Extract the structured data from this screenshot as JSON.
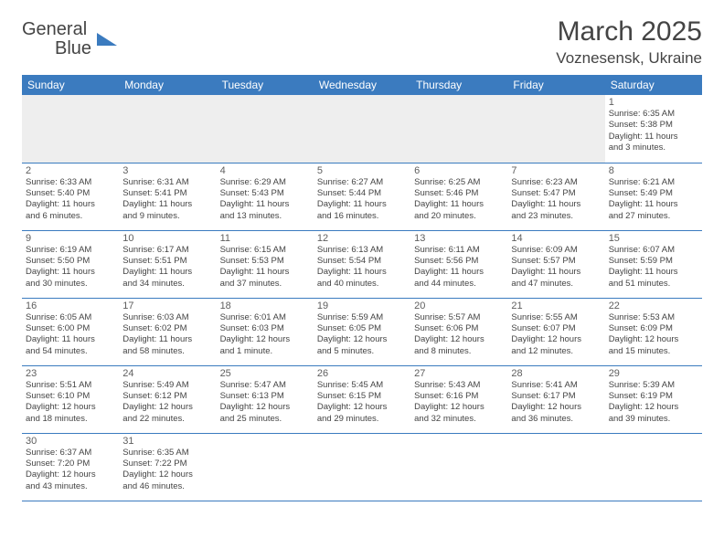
{
  "logo": {
    "text1": "General",
    "text2": "Blue"
  },
  "title": "March 2025",
  "location": "Voznesensk, Ukraine",
  "weekdays": [
    "Sunday",
    "Monday",
    "Tuesday",
    "Wednesday",
    "Thursday",
    "Friday",
    "Saturday"
  ],
  "colors": {
    "header_bg": "#3b7bbf",
    "header_text": "#ffffff",
    "day_border": "#3b7bbf",
    "text": "#444444",
    "leading_bg": "#eeeeee"
  },
  "rows": [
    [
      null,
      null,
      null,
      null,
      null,
      null,
      {
        "d": "1",
        "sr": "Sunrise: 6:35 AM",
        "ss": "Sunset: 5:38 PM",
        "dl1": "Daylight: 11 hours",
        "dl2": "and 3 minutes."
      }
    ],
    [
      {
        "d": "2",
        "sr": "Sunrise: 6:33 AM",
        "ss": "Sunset: 5:40 PM",
        "dl1": "Daylight: 11 hours",
        "dl2": "and 6 minutes."
      },
      {
        "d": "3",
        "sr": "Sunrise: 6:31 AM",
        "ss": "Sunset: 5:41 PM",
        "dl1": "Daylight: 11 hours",
        "dl2": "and 9 minutes."
      },
      {
        "d": "4",
        "sr": "Sunrise: 6:29 AM",
        "ss": "Sunset: 5:43 PM",
        "dl1": "Daylight: 11 hours",
        "dl2": "and 13 minutes."
      },
      {
        "d": "5",
        "sr": "Sunrise: 6:27 AM",
        "ss": "Sunset: 5:44 PM",
        "dl1": "Daylight: 11 hours",
        "dl2": "and 16 minutes."
      },
      {
        "d": "6",
        "sr": "Sunrise: 6:25 AM",
        "ss": "Sunset: 5:46 PM",
        "dl1": "Daylight: 11 hours",
        "dl2": "and 20 minutes."
      },
      {
        "d": "7",
        "sr": "Sunrise: 6:23 AM",
        "ss": "Sunset: 5:47 PM",
        "dl1": "Daylight: 11 hours",
        "dl2": "and 23 minutes."
      },
      {
        "d": "8",
        "sr": "Sunrise: 6:21 AM",
        "ss": "Sunset: 5:49 PM",
        "dl1": "Daylight: 11 hours",
        "dl2": "and 27 minutes."
      }
    ],
    [
      {
        "d": "9",
        "sr": "Sunrise: 6:19 AM",
        "ss": "Sunset: 5:50 PM",
        "dl1": "Daylight: 11 hours",
        "dl2": "and 30 minutes."
      },
      {
        "d": "10",
        "sr": "Sunrise: 6:17 AM",
        "ss": "Sunset: 5:51 PM",
        "dl1": "Daylight: 11 hours",
        "dl2": "and 34 minutes."
      },
      {
        "d": "11",
        "sr": "Sunrise: 6:15 AM",
        "ss": "Sunset: 5:53 PM",
        "dl1": "Daylight: 11 hours",
        "dl2": "and 37 minutes."
      },
      {
        "d": "12",
        "sr": "Sunrise: 6:13 AM",
        "ss": "Sunset: 5:54 PM",
        "dl1": "Daylight: 11 hours",
        "dl2": "and 40 minutes."
      },
      {
        "d": "13",
        "sr": "Sunrise: 6:11 AM",
        "ss": "Sunset: 5:56 PM",
        "dl1": "Daylight: 11 hours",
        "dl2": "and 44 minutes."
      },
      {
        "d": "14",
        "sr": "Sunrise: 6:09 AM",
        "ss": "Sunset: 5:57 PM",
        "dl1": "Daylight: 11 hours",
        "dl2": "and 47 minutes."
      },
      {
        "d": "15",
        "sr": "Sunrise: 6:07 AM",
        "ss": "Sunset: 5:59 PM",
        "dl1": "Daylight: 11 hours",
        "dl2": "and 51 minutes."
      }
    ],
    [
      {
        "d": "16",
        "sr": "Sunrise: 6:05 AM",
        "ss": "Sunset: 6:00 PM",
        "dl1": "Daylight: 11 hours",
        "dl2": "and 54 minutes."
      },
      {
        "d": "17",
        "sr": "Sunrise: 6:03 AM",
        "ss": "Sunset: 6:02 PM",
        "dl1": "Daylight: 11 hours",
        "dl2": "and 58 minutes."
      },
      {
        "d": "18",
        "sr": "Sunrise: 6:01 AM",
        "ss": "Sunset: 6:03 PM",
        "dl1": "Daylight: 12 hours",
        "dl2": "and 1 minute."
      },
      {
        "d": "19",
        "sr": "Sunrise: 5:59 AM",
        "ss": "Sunset: 6:05 PM",
        "dl1": "Daylight: 12 hours",
        "dl2": "and 5 minutes."
      },
      {
        "d": "20",
        "sr": "Sunrise: 5:57 AM",
        "ss": "Sunset: 6:06 PM",
        "dl1": "Daylight: 12 hours",
        "dl2": "and 8 minutes."
      },
      {
        "d": "21",
        "sr": "Sunrise: 5:55 AM",
        "ss": "Sunset: 6:07 PM",
        "dl1": "Daylight: 12 hours",
        "dl2": "and 12 minutes."
      },
      {
        "d": "22",
        "sr": "Sunrise: 5:53 AM",
        "ss": "Sunset: 6:09 PM",
        "dl1": "Daylight: 12 hours",
        "dl2": "and 15 minutes."
      }
    ],
    [
      {
        "d": "23",
        "sr": "Sunrise: 5:51 AM",
        "ss": "Sunset: 6:10 PM",
        "dl1": "Daylight: 12 hours",
        "dl2": "and 18 minutes."
      },
      {
        "d": "24",
        "sr": "Sunrise: 5:49 AM",
        "ss": "Sunset: 6:12 PM",
        "dl1": "Daylight: 12 hours",
        "dl2": "and 22 minutes."
      },
      {
        "d": "25",
        "sr": "Sunrise: 5:47 AM",
        "ss": "Sunset: 6:13 PM",
        "dl1": "Daylight: 12 hours",
        "dl2": "and 25 minutes."
      },
      {
        "d": "26",
        "sr": "Sunrise: 5:45 AM",
        "ss": "Sunset: 6:15 PM",
        "dl1": "Daylight: 12 hours",
        "dl2": "and 29 minutes."
      },
      {
        "d": "27",
        "sr": "Sunrise: 5:43 AM",
        "ss": "Sunset: 6:16 PM",
        "dl1": "Daylight: 12 hours",
        "dl2": "and 32 minutes."
      },
      {
        "d": "28",
        "sr": "Sunrise: 5:41 AM",
        "ss": "Sunset: 6:17 PM",
        "dl1": "Daylight: 12 hours",
        "dl2": "and 36 minutes."
      },
      {
        "d": "29",
        "sr": "Sunrise: 5:39 AM",
        "ss": "Sunset: 6:19 PM",
        "dl1": "Daylight: 12 hours",
        "dl2": "and 39 minutes."
      }
    ],
    [
      {
        "d": "30",
        "sr": "Sunrise: 6:37 AM",
        "ss": "Sunset: 7:20 PM",
        "dl1": "Daylight: 12 hours",
        "dl2": "and 43 minutes."
      },
      {
        "d": "31",
        "sr": "Sunrise: 6:35 AM",
        "ss": "Sunset: 7:22 PM",
        "dl1": "Daylight: 12 hours",
        "dl2": "and 46 minutes."
      },
      null,
      null,
      null,
      null,
      null
    ]
  ]
}
